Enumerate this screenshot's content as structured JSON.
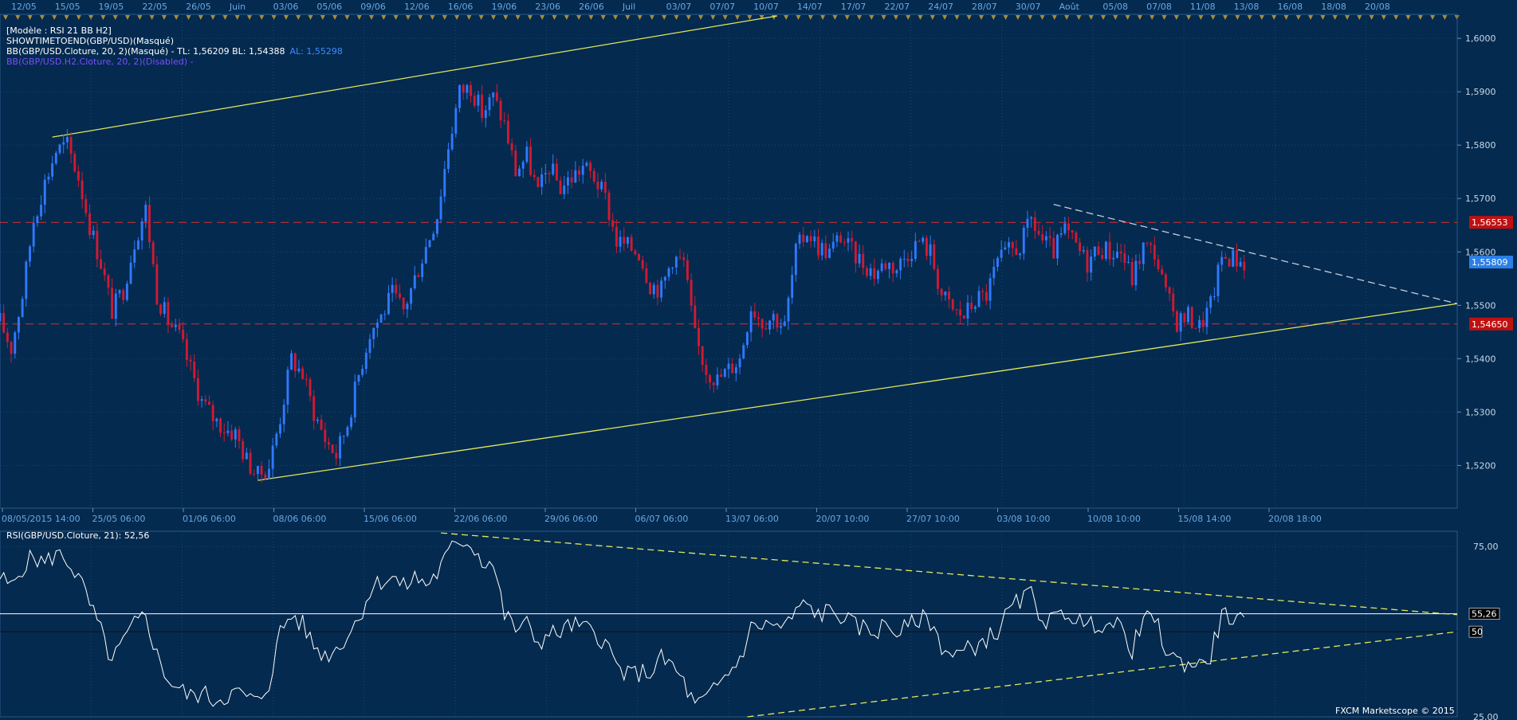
{
  "colors": {
    "background": "#042a4f",
    "grid": "#1b4872",
    "axis_text": "#67a9e5",
    "bull_candle": "#2f79ff",
    "bear_candle": "#d01a32",
    "trend_line": "#e3e85b",
    "red_level": "#e02c2c",
    "red_badge": "#c01010",
    "price_badge": "#2b7fe8",
    "rsi_line": "#ffffff",
    "marker": "#a88d3c"
  },
  "header": {
    "line1": "[Modèle : RSI 21 BB H2]",
    "line2": "SHOWTIMETOEND(GBP/USD)(Masqué)",
    "line3_a": "BB(GBP/USD.Cloture, 20, 2)(Masqué) -  TL: 1,56209  BL: 1,54388",
    "line3_b": "AL: 1,55298",
    "line4": "BB(GBP/USD.H2.Cloture, 20, 2)(Disabled) -"
  },
  "rsi_title": "RSI(GBP/USD.Cloture, 21): 52,56",
  "watermark": "FXCM Marketscope © 2015",
  "top_dates": [
    "12/05",
    "15/05",
    "19/05",
    "22/05",
    "26/05",
    "Juin",
    "03/06",
    "05/06",
    "09/06",
    "12/06",
    "16/06",
    "19/06",
    "23/06",
    "26/06",
    "Juil",
    "03/07",
    "07/07",
    "10/07",
    "14/07",
    "17/07",
    "22/07",
    "24/07",
    "28/07",
    "30/07",
    "Août",
    "05/08",
    "07/08",
    "11/08",
    "13/08",
    "16/08",
    "18/08",
    "20/08"
  ],
  "chart_data": [
    {
      "type": "candlestick",
      "instrument": "GBP/USD",
      "timeframe": "H2",
      "y_range": [
        1.512,
        1.6045
      ],
      "price_ticks": [
        "1,5200",
        "1,5300",
        "1,5400",
        "1,5500",
        "1,5600",
        "1,5700",
        "1,5800",
        "1,5900",
        "1,6000"
      ],
      "bottom_axis_labels": [
        "08/05/2015 14:00",
        "25/05 06:00",
        "01/06 06:00",
        "08/06 06:00",
        "15/06 06:00",
        "22/06 06:00",
        "29/06 06:00",
        "06/07 06:00",
        "13/07 06:00",
        "20/07 10:00",
        "27/07 10:00",
        "03/08 10:00",
        "10/08 10:00",
        "15/08 14:00",
        "20/08 18:00"
      ],
      "levels": [
        {
          "value": 1.56553,
          "label": "1,56553"
        },
        {
          "value": 1.5465,
          "label": "1,54650"
        }
      ],
      "current_price": {
        "value": 1.55809,
        "label": "1,55809"
      },
      "price_path": [
        [
          0,
          1.547
        ],
        [
          3,
          1.542
        ],
        [
          6,
          1.552
        ],
        [
          9,
          1.566
        ],
        [
          12,
          1.573
        ],
        [
          15,
          1.579
        ],
        [
          18,
          1.58
        ],
        [
          21,
          1.574
        ],
        [
          24,
          1.565
        ],
        [
          27,
          1.558
        ],
        [
          30,
          1.549
        ],
        [
          33,
          1.553
        ],
        [
          36,
          1.562
        ],
        [
          39,
          1.568
        ],
        [
          42,
          1.552
        ],
        [
          45,
          1.547
        ],
        [
          48,
          1.544
        ],
        [
          51,
          1.538
        ],
        [
          54,
          1.532
        ],
        [
          57,
          1.529
        ],
        [
          60,
          1.527
        ],
        [
          63,
          1.526
        ],
        [
          66,
          1.521
        ],
        [
          69,
          1.518
        ],
        [
          72,
          1.52
        ],
        [
          75,
          1.529
        ],
        [
          78,
          1.54
        ],
        [
          81,
          1.537
        ],
        [
          84,
          1.53
        ],
        [
          87,
          1.525
        ],
        [
          90,
          1.522
        ],
        [
          93,
          1.528
        ],
        [
          96,
          1.537
        ],
        [
          99,
          1.545
        ],
        [
          102,
          1.548
        ],
        [
          105,
          1.552
        ],
        [
          108,
          1.549
        ],
        [
          111,
          1.555
        ],
        [
          114,
          1.561
        ],
        [
          117,
          1.567
        ],
        [
          120,
          1.58
        ],
        [
          123,
          1.59
        ],
        [
          126,
          1.591
        ],
        [
          129,
          1.586
        ],
        [
          132,
          1.589
        ],
        [
          135,
          1.584
        ],
        [
          138,
          1.575
        ],
        [
          141,
          1.578
        ],
        [
          144,
          1.571
        ],
        [
          147,
          1.576
        ],
        [
          150,
          1.572
        ],
        [
          153,
          1.574
        ],
        [
          156,
          1.576
        ],
        [
          159,
          1.574
        ],
        [
          162,
          1.57
        ],
        [
          165,
          1.562
        ],
        [
          168,
          1.561
        ],
        [
          171,
          1.56
        ],
        [
          174,
          1.554
        ],
        [
          177,
          1.553
        ],
        [
          180,
          1.559
        ],
        [
          183,
          1.558
        ],
        [
          186,
          1.544
        ],
        [
          189,
          1.538
        ],
        [
          192,
          1.536
        ],
        [
          195,
          1.538
        ],
        [
          198,
          1.54
        ],
        [
          201,
          1.55
        ],
        [
          204,
          1.547
        ],
        [
          207,
          1.548
        ],
        [
          210,
          1.546
        ],
        [
          213,
          1.56
        ],
        [
          216,
          1.564
        ],
        [
          219,
          1.561
        ],
        [
          222,
          1.56
        ],
        [
          225,
          1.563
        ],
        [
          228,
          1.56
        ],
        [
          231,
          1.558
        ],
        [
          234,
          1.556
        ],
        [
          237,
          1.558
        ],
        [
          240,
          1.557
        ],
        [
          243,
          1.56
        ],
        [
          246,
          1.562
        ],
        [
          249,
          1.56
        ],
        [
          252,
          1.552
        ],
        [
          255,
          1.549
        ],
        [
          258,
          1.548
        ],
        [
          261,
          1.551
        ],
        [
          264,
          1.552
        ],
        [
          267,
          1.558
        ],
        [
          270,
          1.56
        ],
        [
          273,
          1.561
        ],
        [
          276,
          1.566
        ],
        [
          279,
          1.562
        ],
        [
          282,
          1.56
        ],
        [
          285,
          1.564
        ],
        [
          288,
          1.561
        ],
        [
          291,
          1.558
        ],
        [
          294,
          1.561
        ],
        [
          297,
          1.56
        ],
        [
          300,
          1.56
        ],
        [
          303,
          1.555
        ],
        [
          306,
          1.561
        ],
        [
          309,
          1.56
        ],
        [
          312,
          1.552
        ],
        [
          315,
          1.547
        ],
        [
          318,
          1.548
        ],
        [
          321,
          1.546
        ],
        [
          324,
          1.55
        ],
        [
          327,
          1.559
        ],
        [
          330,
          1.559
        ],
        [
          333,
          1.558
        ]
      ],
      "candle_span": 333,
      "x_extent": 390,
      "channel_upper": {
        "from": [
          14,
          1.5815
        ],
        "to": [
          208,
          1.6042
        ]
      },
      "channel_lower": {
        "from": [
          69,
          1.5172
        ],
        "to": [
          390,
          1.5503
        ]
      },
      "inner_wedge_top": {
        "from": [
          282,
          1.5689
        ],
        "to": [
          390,
          1.5503
        ]
      },
      "inner_wedge_mid": {
        "from": [
          315,
          1.5418
        ],
        "to": [
          390,
          1.5503
        ]
      }
    },
    {
      "type": "line",
      "indicator": "RSI",
      "period": 21,
      "current_value": 52.56,
      "y_range": [
        25,
        79.5
      ],
      "y_ticks": [
        "75,00",
        "25,00"
      ],
      "levels": [
        {
          "value": 55.26,
          "label": "55,26"
        },
        {
          "value": 50,
          "label": "50"
        }
      ],
      "values": [
        [
          0,
          66
        ],
        [
          3,
          63
        ],
        [
          6,
          69
        ],
        [
          9,
          72
        ],
        [
          12,
          70
        ],
        [
          15,
          73
        ],
        [
          18,
          71
        ],
        [
          21,
          66
        ],
        [
          24,
          58
        ],
        [
          27,
          50
        ],
        [
          30,
          41
        ],
        [
          33,
          47
        ],
        [
          36,
          52
        ],
        [
          39,
          55
        ],
        [
          42,
          43
        ],
        [
          45,
          36
        ],
        [
          48,
          33
        ],
        [
          51,
          31
        ],
        [
          54,
          32
        ],
        [
          57,
          30
        ],
        [
          60,
          31
        ],
        [
          63,
          32
        ],
        [
          66,
          31
        ],
        [
          69,
          29
        ],
        [
          72,
          35
        ],
        [
          75,
          50
        ],
        [
          78,
          55
        ],
        [
          81,
          52
        ],
        [
          84,
          46
        ],
        [
          87,
          43
        ],
        [
          90,
          45
        ],
        [
          93,
          49
        ],
        [
          96,
          54
        ],
        [
          99,
          62
        ],
        [
          102,
          65
        ],
        [
          105,
          66
        ],
        [
          108,
          63
        ],
        [
          111,
          66
        ],
        [
          114,
          64
        ],
        [
          117,
          67
        ],
        [
          120,
          73
        ],
        [
          123,
          77
        ],
        [
          126,
          76
        ],
        [
          129,
          71
        ],
        [
          132,
          70
        ],
        [
          135,
          55
        ],
        [
          138,
          51
        ],
        [
          141,
          52
        ],
        [
          144,
          47
        ],
        [
          147,
          49
        ],
        [
          150,
          50
        ],
        [
          153,
          52
        ],
        [
          156,
          51
        ],
        [
          159,
          50
        ],
        [
          162,
          47
        ],
        [
          165,
          40
        ],
        [
          168,
          37
        ],
        [
          171,
          38
        ],
        [
          174,
          38
        ],
        [
          177,
          42
        ],
        [
          180,
          40
        ],
        [
          183,
          35
        ],
        [
          186,
          28
        ],
        [
          189,
          30
        ],
        [
          192,
          34
        ],
        [
          195,
          38
        ],
        [
          198,
          42
        ],
        [
          201,
          51
        ],
        [
          204,
          52
        ],
        [
          207,
          52
        ],
        [
          210,
          51
        ],
        [
          213,
          56
        ],
        [
          216,
          58
        ],
        [
          219,
          55
        ],
        [
          222,
          56
        ],
        [
          225,
          55
        ],
        [
          228,
          52
        ],
        [
          231,
          51
        ],
        [
          234,
          50
        ],
        [
          237,
          52
        ],
        [
          240,
          50
        ],
        [
          243,
          51
        ],
        [
          246,
          54
        ],
        [
          249,
          53
        ],
        [
          252,
          46
        ],
        [
          255,
          43
        ],
        [
          258,
          44
        ],
        [
          261,
          46
        ],
        [
          264,
          48
        ],
        [
          267,
          50
        ],
        [
          270,
          56
        ],
        [
          273,
          59
        ],
        [
          276,
          61
        ],
        [
          279,
          54
        ],
        [
          282,
          53
        ],
        [
          285,
          56
        ],
        [
          288,
          54
        ],
        [
          291,
          51
        ],
        [
          294,
          53
        ],
        [
          297,
          52
        ],
        [
          300,
          51
        ],
        [
          303,
          45
        ],
        [
          306,
          53
        ],
        [
          309,
          54
        ],
        [
          312,
          45
        ],
        [
          315,
          41
        ],
        [
          318,
          41
        ],
        [
          321,
          40
        ],
        [
          324,
          43
        ],
        [
          327,
          55
        ],
        [
          330,
          54
        ],
        [
          333,
          52
        ]
      ],
      "trend_upper": {
        "from": [
          118,
          79
        ],
        "to": [
          390,
          55
        ]
      },
      "trend_lower": {
        "from": [
          200,
          25
        ],
        "to": [
          390,
          50
        ]
      }
    }
  ]
}
